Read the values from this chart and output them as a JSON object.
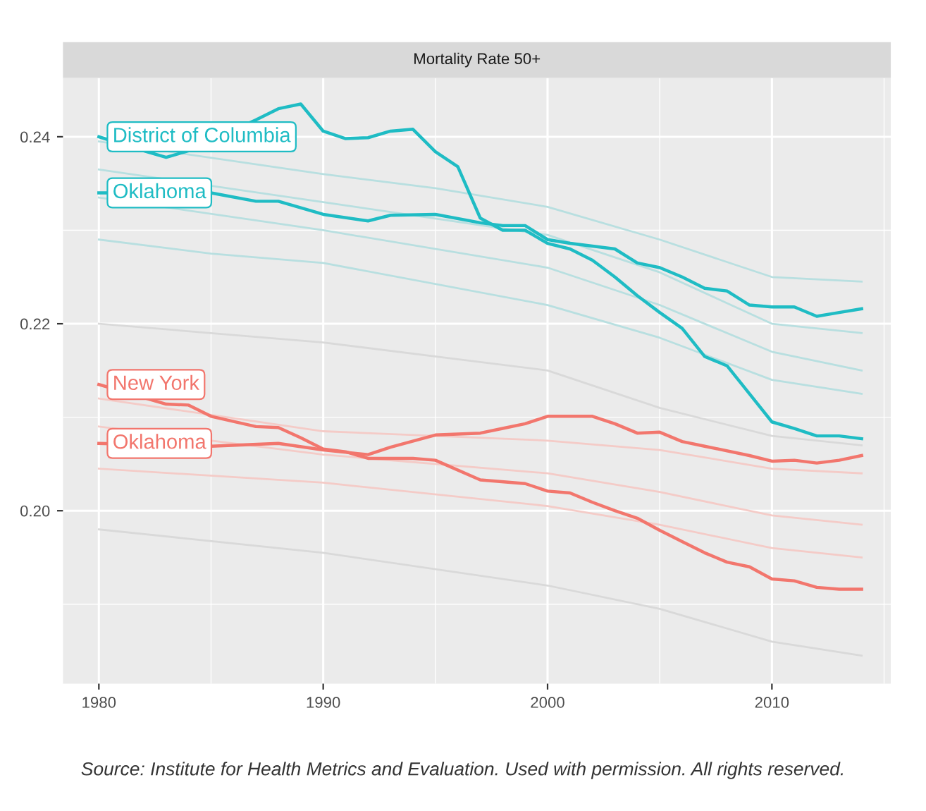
{
  "chart_data": {
    "type": "line",
    "title": "Mortality Rate 50+",
    "xlim": [
      1978.4,
      2015.3
    ],
    "ylim": [
      0.1815,
      0.2463
    ],
    "xticks": [
      1980,
      1990,
      2000,
      2010
    ],
    "yticks": [
      {
        "value": 0.2,
        "label": "0.20"
      },
      {
        "value": 0.22,
        "label": "0.22"
      },
      {
        "value": 0.24,
        "label": "0.24"
      }
    ],
    "grid": true,
    "legend": false,
    "marker": "none",
    "line_style": "solid",
    "series": [
      {
        "color": "#d9d9d9",
        "x": [
          1980,
          1990,
          2000,
          2005,
          2010,
          2014
        ],
        "values": [
          0.22,
          0.218,
          0.215,
          0.211,
          0.208,
          0.207
        ]
      },
      {
        "color": "#d9d9d9",
        "x": [
          1980,
          1990,
          2000,
          2005,
          2010,
          2014
        ],
        "values": [
          0.198,
          0.1955,
          0.192,
          0.1895,
          0.186,
          0.1845
        ]
      },
      {
        "color": "#b8dfe0",
        "x": [
          1980,
          1990,
          1995,
          2000,
          2005,
          2010,
          2014
        ],
        "values": [
          0.2395,
          0.236,
          0.2345,
          0.2325,
          0.229,
          0.225,
          0.2245
        ]
      },
      {
        "color": "#b8dfe0",
        "x": [
          1980,
          1990,
          2000,
          2005,
          2010,
          2014
        ],
        "values": [
          0.2365,
          0.233,
          0.2295,
          0.2255,
          0.22,
          0.219
        ]
      },
      {
        "color": "#b8dfe0",
        "x": [
          1980,
          1990,
          2000,
          2005,
          2010,
          2014
        ],
        "values": [
          0.2335,
          0.23,
          0.226,
          0.222,
          0.217,
          0.215
        ]
      },
      {
        "color": "#b8dfe0",
        "x": [
          1980,
          1985,
          1990,
          2000,
          2005,
          2010,
          2014
        ],
        "values": [
          0.229,
          0.2275,
          0.2265,
          0.222,
          0.2185,
          0.214,
          0.2125
        ]
      },
      {
        "color": "#f4cbc7",
        "x": [
          1980,
          1990,
          2000,
          2005,
          2010,
          2014
        ],
        "values": [
          0.212,
          0.2085,
          0.2075,
          0.2065,
          0.2045,
          0.204
        ]
      },
      {
        "color": "#f4cbc7",
        "x": [
          1980,
          1990,
          2000,
          2005,
          2010,
          2014
        ],
        "values": [
          0.209,
          0.206,
          0.204,
          0.202,
          0.1995,
          0.1985
        ]
      },
      {
        "color": "#f4cbc7",
        "x": [
          1980,
          1990,
          2000,
          2005,
          2010,
          2014
        ],
        "values": [
          0.2045,
          0.203,
          0.2005,
          0.1985,
          0.196,
          0.195
        ]
      },
      {
        "name": "District of Columbia",
        "color": "#1fbcc4",
        "x": [
          1980,
          1982,
          1983,
          1984,
          1987,
          1988,
          1989,
          1990,
          1991,
          1992,
          1993,
          1994,
          1995,
          1996,
          1997,
          1998,
          1999,
          2000,
          2001,
          2002,
          2003,
          2004,
          2005,
          2006,
          2007,
          2008,
          2009,
          2010,
          2011,
          2012,
          2013,
          2014
        ],
        "values": [
          0.24,
          0.2385,
          0.2378,
          0.2385,
          0.2418,
          0.243,
          0.2435,
          0.2406,
          0.2398,
          0.2399,
          0.2406,
          0.2408,
          0.2384,
          0.2368,
          0.2313,
          0.23,
          0.23,
          0.2286,
          0.228,
          0.2268,
          0.225,
          0.223,
          0.2212,
          0.2195,
          0.2165,
          0.2155,
          0.2125,
          0.2095,
          0.2088,
          0.208,
          0.208,
          0.2077
        ]
      },
      {
        "name": "Oklahoma",
        "color": "#1fbcc4",
        "x": [
          1980,
          1985,
          1987,
          1988,
          1990,
          1992,
          1993,
          1995,
          1997,
          1998,
          1999,
          2000,
          2001,
          2003,
          2004,
          2005,
          2006,
          2007,
          2008,
          2009,
          2010,
          2011,
          2012,
          2013,
          2014
        ],
        "values": [
          0.234,
          0.234,
          0.2331,
          0.2331,
          0.2317,
          0.231,
          0.2316,
          0.2317,
          0.2308,
          0.2305,
          0.2305,
          0.229,
          0.2286,
          0.228,
          0.2265,
          0.226,
          0.225,
          0.2238,
          0.2235,
          0.222,
          0.2218,
          0.2218,
          0.2208,
          0.2212,
          0.2216
        ]
      },
      {
        "name": "New York",
        "color": "#f2766d",
        "x": [
          1980,
          1983,
          1984,
          1985,
          1987,
          1988,
          1989,
          1990,
          1991,
          1992,
          1994,
          1995,
          1997,
          1999,
          2000,
          2001,
          2002,
          2003,
          2004,
          2005,
          2006,
          2007,
          2008,
          2009,
          2010,
          2011,
          2012,
          2013,
          2014
        ],
        "values": [
          0.2135,
          0.2114,
          0.2113,
          0.2101,
          0.209,
          0.2089,
          0.2078,
          0.2066,
          0.2063,
          0.2056,
          0.2056,
          0.2054,
          0.2033,
          0.2029,
          0.2021,
          0.2019,
          0.2009,
          0.2,
          0.1992,
          0.1979,
          0.1967,
          0.1955,
          0.1945,
          0.194,
          0.1927,
          0.1925,
          0.1918,
          0.1916,
          0.1916
        ]
      },
      {
        "name": "Oklahoma",
        "color": "#f2766d",
        "x": [
          1980,
          1985,
          1988,
          1990,
          1992,
          1993,
          1995,
          1997,
          1998,
          1999,
          2000,
          2002,
          2003,
          2004,
          2005,
          2006,
          2007,
          2009,
          2010,
          2011,
          2012,
          2013,
          2014
        ],
        "values": [
          0.2072,
          0.2069,
          0.2072,
          0.2065,
          0.206,
          0.2068,
          0.2081,
          0.2083,
          0.2088,
          0.2093,
          0.2101,
          0.2101,
          0.2093,
          0.2083,
          0.2084,
          0.2074,
          0.2069,
          0.2059,
          0.2053,
          0.2054,
          0.2051,
          0.2054,
          0.2059
        ]
      }
    ],
    "annotations": [
      "Source: Institute for Health Metrics and Evaluation. Used with permission. All rights reserved."
    ]
  }
}
